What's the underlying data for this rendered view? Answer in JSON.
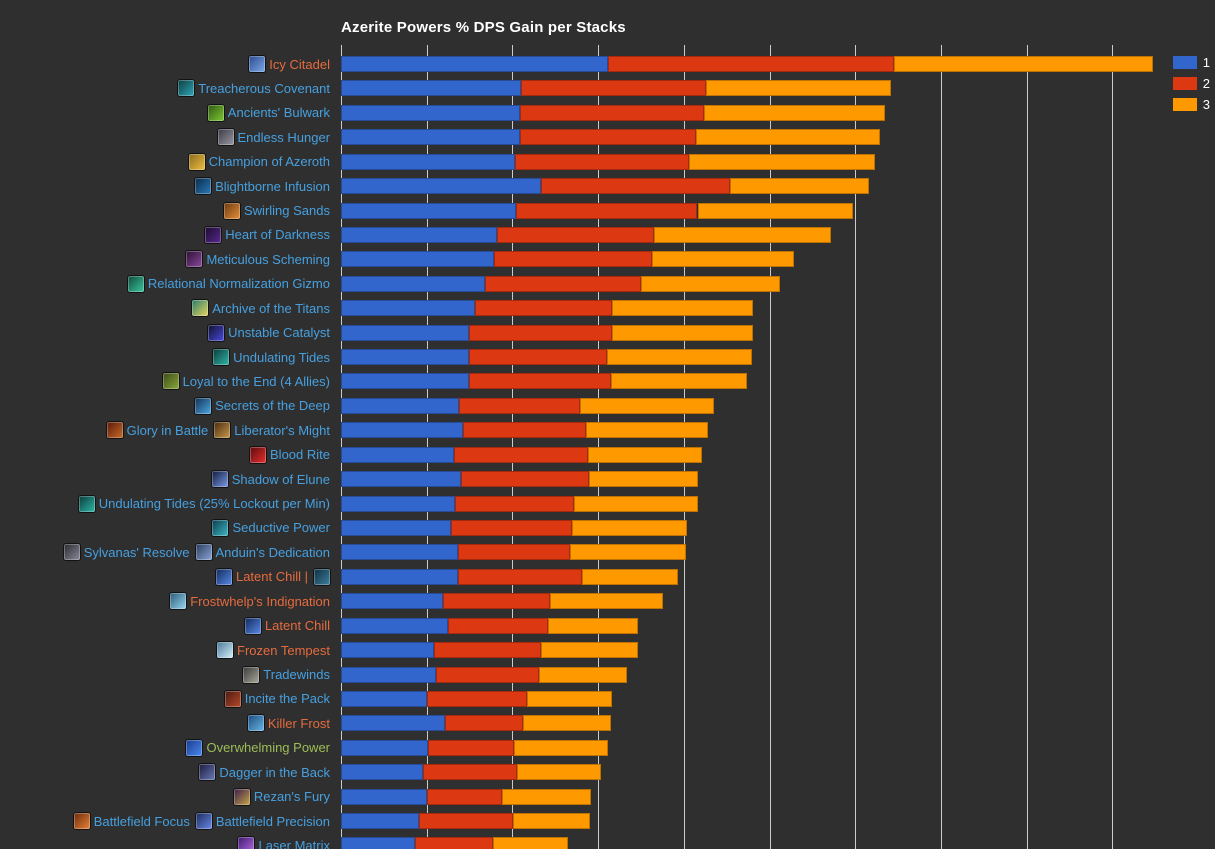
{
  "colors": {
    "background": "#2F2F2F",
    "gridline": "#CCCCCC",
    "title": "#FFFFFF",
    "label_blue": "#46A0E0",
    "label_orange": "#E66B3E",
    "label_green": "#9CBE56"
  },
  "legend": {
    "items": [
      {
        "label": "1",
        "color": "#3366CC"
      },
      {
        "label": "2",
        "color": "#DC3912"
      },
      {
        "label": "3",
        "color": "#FF9900"
      }
    ]
  },
  "chart_data": {
    "type": "bar",
    "orientation": "horizontal-stacked",
    "title": "Azerite Powers % DPS Gain per Stacks",
    "xlabel": "",
    "ylabel": "",
    "value_unit": "x-axis grid divisions (tick labels not visible in view)",
    "axis": {
      "gridlines_visible": true,
      "grid_divisions_shown": 9,
      "x_tick_labels_visible": false
    },
    "legend_position": "top-right",
    "series_names": [
      "1",
      "2",
      "3"
    ],
    "series_colors": [
      "#3366CC",
      "#DC3912",
      "#FF9900"
    ],
    "rows": [
      {
        "label_color": "orange",
        "values": [
          3.12,
          3.33,
          3.02
        ],
        "parts": [
          {
            "icon": "icy-citadel",
            "icon_colors": [
              "#2b4a8e",
              "#7ea9e8"
            ],
            "text": "Icy Citadel"
          }
        ]
      },
      {
        "label_color": "blue",
        "values": [
          2.1,
          2.16,
          2.16
        ],
        "parts": [
          {
            "icon": "treacherous-covenant",
            "icon_colors": [
              "#0d3b3f",
              "#2fa8b8"
            ],
            "text": "Treacherous Covenant"
          }
        ]
      },
      {
        "label_color": "blue",
        "values": [
          2.09,
          2.14,
          2.12
        ],
        "parts": [
          {
            "icon": "ancients-bulwark",
            "icon_colors": [
              "#2f5a14",
              "#7fc832"
            ],
            "text": "Ancients' Bulwark"
          }
        ]
      },
      {
        "label_color": "blue",
        "values": [
          2.09,
          2.05,
          2.15
        ],
        "parts": [
          {
            "icon": "endless-hunger",
            "icon_colors": [
              "#3a3a42",
              "#9a9aa8"
            ],
            "text": "Endless Hunger"
          }
        ]
      },
      {
        "label_color": "blue",
        "values": [
          2.03,
          2.03,
          2.17
        ],
        "parts": [
          {
            "icon": "champion-of-azeroth",
            "icon_colors": [
              "#8a6a1e",
              "#f0c040"
            ],
            "text": "Champion of Azeroth"
          }
        ]
      },
      {
        "label_color": "blue",
        "values": [
          2.33,
          2.21,
          1.62
        ],
        "parts": [
          {
            "icon": "blightborne-infusion",
            "icon_colors": [
              "#0a2a4a",
              "#2a7ab8"
            ],
            "text": "Blightborne Infusion"
          }
        ]
      },
      {
        "label_color": "blue",
        "values": [
          2.04,
          2.12,
          1.82
        ],
        "parts": [
          {
            "icon": "swirling-sands",
            "icon_colors": [
              "#6a3a10",
              "#e8903a"
            ],
            "text": "Swirling Sands"
          }
        ]
      },
      {
        "label_color": "blue",
        "values": [
          1.82,
          1.83,
          2.07
        ],
        "parts": [
          {
            "icon": "heart-of-darkness",
            "icon_colors": [
              "#1a0a2e",
              "#5a2a8e"
            ],
            "text": "Heart of Darkness"
          }
        ]
      },
      {
        "label_color": "blue",
        "values": [
          1.79,
          1.84,
          1.66
        ],
        "parts": [
          {
            "icon": "meticulous-scheming",
            "icon_colors": [
              "#2a1030",
              "#8a4a9e"
            ],
            "text": "Meticulous Scheming"
          }
        ]
      },
      {
        "label_color": "blue",
        "values": [
          1.68,
          1.82,
          1.62
        ],
        "parts": [
          {
            "icon": "relational-normalization-gizmo",
            "icon_colors": [
              "#0e4a3a",
              "#3ec8a0"
            ],
            "text": "Relational Normalization Gizmo"
          }
        ]
      },
      {
        "label_color": "blue",
        "values": [
          1.56,
          1.6,
          1.65
        ],
        "parts": [
          {
            "icon": "archive-of-the-titans",
            "icon_colors": [
              "#2a7a6a",
              "#e8d860"
            ],
            "text": "Archive of the Titans"
          }
        ]
      },
      {
        "label_color": "blue",
        "values": [
          1.49,
          1.67,
          1.65
        ],
        "parts": [
          {
            "icon": "unstable-catalyst",
            "icon_colors": [
              "#10102a",
              "#4a4ae0"
            ],
            "text": "Unstable Catalyst"
          }
        ]
      },
      {
        "label_color": "blue",
        "values": [
          1.49,
          1.61,
          1.7
        ],
        "parts": [
          {
            "icon": "undulating-tides",
            "icon_colors": [
              "#0a3a3a",
              "#30b8a8"
            ],
            "text": "Undulating Tides"
          }
        ]
      },
      {
        "label_color": "blue",
        "values": [
          1.49,
          1.66,
          1.59
        ],
        "parts": [
          {
            "icon": "loyal-to-the-end",
            "icon_colors": [
              "#3a4a1a",
              "#8aa83a"
            ],
            "text": "Loyal to the End (4 Allies)"
          }
        ]
      },
      {
        "label_color": "blue",
        "values": [
          1.38,
          1.41,
          1.56
        ],
        "parts": [
          {
            "icon": "secrets-of-the-deep",
            "icon_colors": [
              "#103050",
              "#50a8e8"
            ],
            "text": "Secrets of the Deep"
          }
        ]
      },
      {
        "label_color": "blue",
        "values": [
          1.42,
          1.44,
          1.42
        ],
        "parts": [
          {
            "icon": "glory-in-battle",
            "icon_colors": [
              "#5a1a0a",
              "#c86a2a"
            ],
            "text": "Glory in Battle"
          },
          {
            "icon": "liberators-might",
            "icon_colors": [
              "#4a2a10",
              "#c89a4a"
            ],
            "text": "Liberator's Might"
          }
        ]
      },
      {
        "label_color": "blue",
        "values": [
          1.32,
          1.56,
          1.33
        ],
        "parts": [
          {
            "icon": "blood-rite",
            "icon_colors": [
              "#5a0a0a",
              "#e83030"
            ],
            "text": "Blood Rite"
          }
        ]
      },
      {
        "label_color": "blue",
        "values": [
          1.4,
          1.49,
          1.28
        ],
        "parts": [
          {
            "icon": "shadow-of-elune",
            "icon_colors": [
              "#101a3a",
              "#7a9ae8"
            ],
            "text": "Shadow of Elune"
          }
        ]
      },
      {
        "label_color": "blue",
        "values": [
          1.33,
          1.39,
          1.44
        ],
        "parts": [
          {
            "icon": "undulating-tides-lockout",
            "icon_colors": [
              "#0a3a3a",
              "#30b8a8"
            ],
            "text": "Undulating Tides (25% Lockout per Min)"
          }
        ]
      },
      {
        "label_color": "blue",
        "values": [
          1.28,
          1.41,
          1.35
        ],
        "parts": [
          {
            "icon": "seductive-power",
            "icon_colors": [
              "#0a3a4a",
              "#40b8c8"
            ],
            "text": "Seductive Power"
          }
        ]
      },
      {
        "label_color": "blue",
        "values": [
          1.37,
          1.3,
          1.35
        ],
        "parts": [
          {
            "icon": "sylvanas-resolve",
            "icon_colors": [
              "#2a2a30",
              "#8a8a9a"
            ],
            "text": "Sylvanas' Resolve"
          },
          {
            "icon": "anduins-dedication",
            "icon_colors": [
              "#2a3a5a",
              "#8aa8d8"
            ],
            "text": "Anduin's Dedication"
          }
        ]
      },
      {
        "label_color": "orange",
        "values": [
          1.37,
          1.44,
          1.12
        ],
        "parts": [
          {
            "icon": "latent-chill",
            "icon_colors": [
              "#102a5a",
              "#5a8ae8"
            ],
            "text": "Latent Chill |"
          },
          {
            "icon": "latent-chill-link",
            "icon_colors": [
              "#0e2f40",
              "#3e7f9e"
            ],
            "text": ""
          }
        ]
      },
      {
        "label_color": "orange",
        "values": [
          1.19,
          1.25,
          1.32
        ],
        "parts": [
          {
            "icon": "frostwhelps-indignation",
            "icon_colors": [
              "#2a5a7a",
              "#9ad8f0"
            ],
            "text": "Frostwhelp's Indignation"
          }
        ]
      },
      {
        "label_color": "orange",
        "values": [
          1.25,
          1.16,
          1.06
        ],
        "parts": [
          {
            "icon": "latent-chill",
            "icon_colors": [
              "#102a5a",
              "#5a8ae8"
            ],
            "text": "Latent Chill"
          }
        ]
      },
      {
        "label_color": "orange",
        "values": [
          1.09,
          1.24,
          1.13
        ],
        "parts": [
          {
            "icon": "frozen-tempest",
            "icon_colors": [
              "#4a7a9a",
              "#d8f0fa"
            ],
            "text": "Frozen Tempest"
          }
        ]
      },
      {
        "label_color": "blue",
        "values": [
          1.11,
          1.2,
          1.03
        ],
        "parts": [
          {
            "icon": "tradewinds",
            "icon_colors": [
              "#3a3a3a",
              "#a8a89a"
            ],
            "text": "Tradewinds"
          }
        ]
      },
      {
        "label_color": "blue",
        "values": [
          1.0,
          1.17,
          0.99
        ],
        "parts": [
          {
            "icon": "incite-the-pack",
            "icon_colors": [
              "#4a1a10",
              "#b84a2a"
            ],
            "text": "Incite the Pack"
          }
        ]
      },
      {
        "label_color": "orange",
        "values": [
          1.21,
          0.91,
          1.03
        ],
        "parts": [
          {
            "icon": "killer-frost",
            "icon_colors": [
              "#1a4a7a",
              "#6ab8e8"
            ],
            "text": "Killer Frost"
          }
        ]
      },
      {
        "label_color": "green",
        "values": [
          1.02,
          1.0,
          1.09
        ],
        "parts": [
          {
            "icon": "overwhelming-power",
            "icon_colors": [
              "#1a3a8a",
              "#4a8af0"
            ],
            "text": "Overwhelming Power"
          }
        ]
      },
      {
        "label_color": "blue",
        "values": [
          0.96,
          1.09,
          0.98
        ],
        "parts": [
          {
            "icon": "dagger-in-the-back",
            "icon_colors": [
              "#1a1a3a",
              "#6a7ab8"
            ],
            "text": "Dagger in the Back"
          }
        ]
      },
      {
        "label_color": "blue",
        "values": [
          1.0,
          0.88,
          1.04
        ],
        "parts": [
          {
            "icon": "rezans-fury",
            "icon_colors": [
              "#3a1a4a",
              "#c8a84a"
            ],
            "text": "Rezan's Fury"
          }
        ]
      },
      {
        "label_color": "blue",
        "values": [
          0.91,
          1.1,
          0.9
        ],
        "parts": [
          {
            "icon": "battlefield-focus",
            "icon_colors": [
              "#6a2a0a",
              "#e8843a"
            ],
            "text": "Battlefield Focus"
          },
          {
            "icon": "battlefield-precision",
            "icon_colors": [
              "#1a2a5a",
              "#6a8ae8"
            ],
            "text": "Battlefield Precision"
          }
        ]
      },
      {
        "label_color": "blue",
        "values": [
          0.86,
          0.91,
          0.88
        ],
        "parts": [
          {
            "icon": "laser-matrix",
            "icon_colors": [
              "#3a1a6a",
              "#b86ae8"
            ],
            "text": "Laser Matrix"
          }
        ]
      }
    ]
  }
}
